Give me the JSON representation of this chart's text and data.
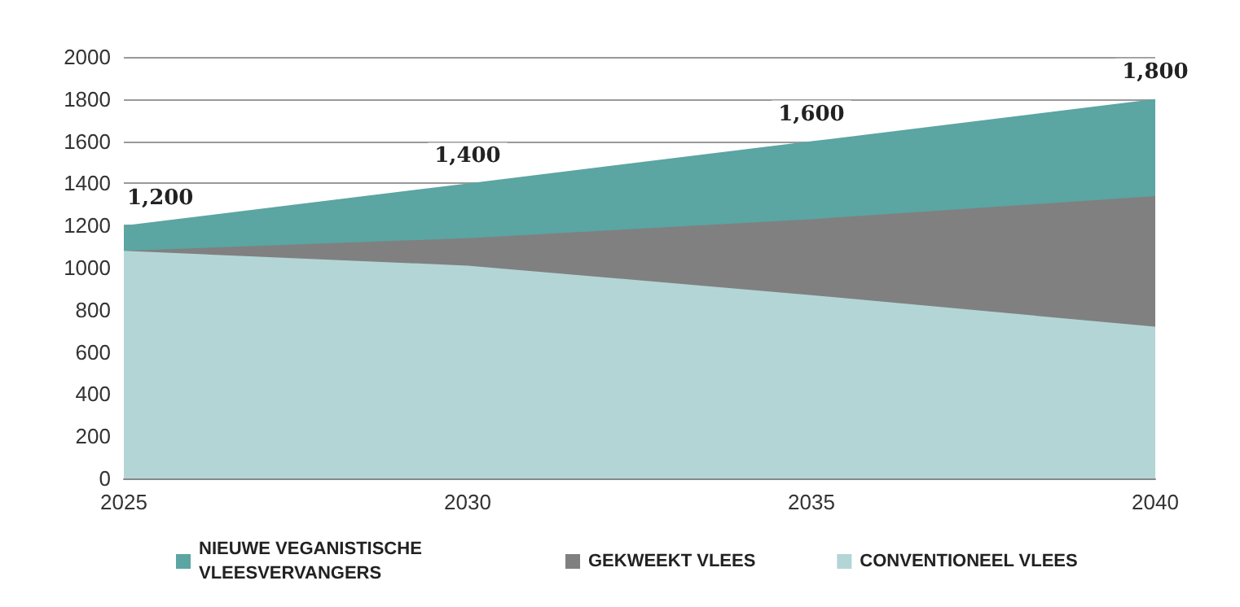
{
  "chart_data": {
    "type": "area",
    "stacked": true,
    "x": [
      2025,
      2030,
      2035,
      2040
    ],
    "series": [
      {
        "name": "CONVENTIONEEL VLEES",
        "color": "#b3d5d5",
        "values": [
          1080,
          1010,
          870,
          720
        ]
      },
      {
        "name": "GEKWEEKT VLEES",
        "color": "#808080",
        "values": [
          0,
          130,
          360,
          620
        ]
      },
      {
        "name": "NIEUWE VEGANISTISCHE VLEESVERVANGERS",
        "color": "#5ba5a2",
        "values": [
          120,
          260,
          370,
          460
        ]
      }
    ],
    "totals": [
      "1,200",
      "1,400",
      "1,600",
      "1,800"
    ],
    "xlim": [
      2025,
      2040
    ],
    "xticks": [
      2025,
      2030,
      2035,
      2040
    ],
    "ylim": [
      0,
      2000
    ],
    "yticks": [
      0,
      200,
      400,
      600,
      800,
      1000,
      1200,
      1400,
      1600,
      1800,
      2000
    ],
    "grid": "y",
    "legend": "bottom"
  }
}
